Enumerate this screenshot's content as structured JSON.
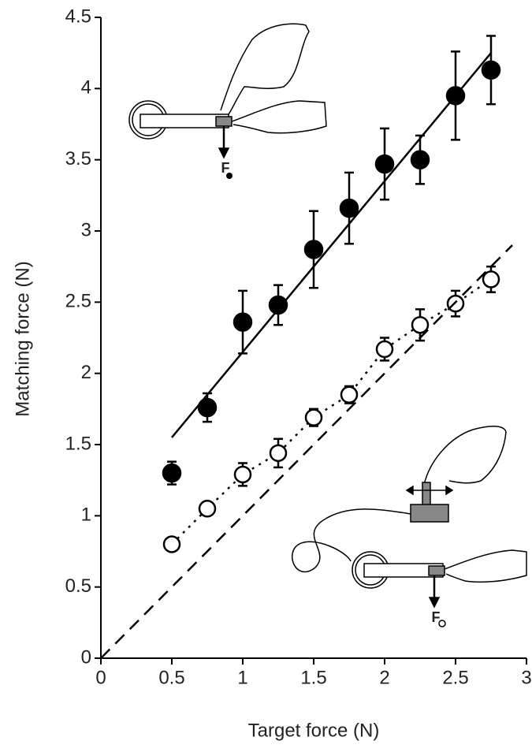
{
  "chart_data": {
    "type": "scatter",
    "xlabel": "Target force (N)",
    "ylabel": "Matching force (N)",
    "xlim": [
      0,
      3
    ],
    "ylim": [
      0,
      4.5
    ],
    "xticks": [
      0,
      0.5,
      1,
      1.5,
      2,
      2.5,
      3
    ],
    "yticks": [
      0,
      0.5,
      1,
      1.5,
      2,
      2.5,
      3,
      3.5,
      4,
      4.5
    ],
    "series": [
      {
        "color": "#000000",
        "marker": "filled",
        "line": "none",
        "x": [
          0.5,
          0.75,
          1.0,
          1.25,
          1.5,
          1.75,
          2.0,
          2.25,
          2.5,
          2.75
        ],
        "values": [
          1.3,
          1.76,
          2.36,
          2.48,
          2.87,
          3.16,
          3.47,
          3.5,
          3.95,
          4.13
        ],
        "errors": [
          0.08,
          0.1,
          0.22,
          0.14,
          0.27,
          0.25,
          0.25,
          0.17,
          0.31,
          0.24
        ]
      },
      {
        "color": "#000000",
        "marker": "open",
        "line": "dotted",
        "x": [
          0.5,
          0.75,
          1.0,
          1.25,
          1.5,
          1.75,
          2.0,
          2.25,
          2.5,
          2.75
        ],
        "values": [
          0.8,
          1.05,
          1.29,
          1.44,
          1.69,
          1.85,
          2.17,
          2.34,
          2.49,
          2.66
        ],
        "errors": [
          0.02,
          0.03,
          0.08,
          0.1,
          0.06,
          0.06,
          0.08,
          0.11,
          0.09,
          0.09
        ]
      },
      {
        "color": "#000000",
        "marker": "none",
        "line": "solid",
        "x": [
          0.5,
          2.75
        ],
        "values": [
          1.55,
          4.25
        ]
      },
      {
        "color": "#000000",
        "marker": "none",
        "line": "dashed",
        "x": [
          0,
          2.9
        ],
        "values": [
          0,
          2.9
        ]
      }
    ],
    "annotations": [
      "F",
      "F"
    ]
  }
}
